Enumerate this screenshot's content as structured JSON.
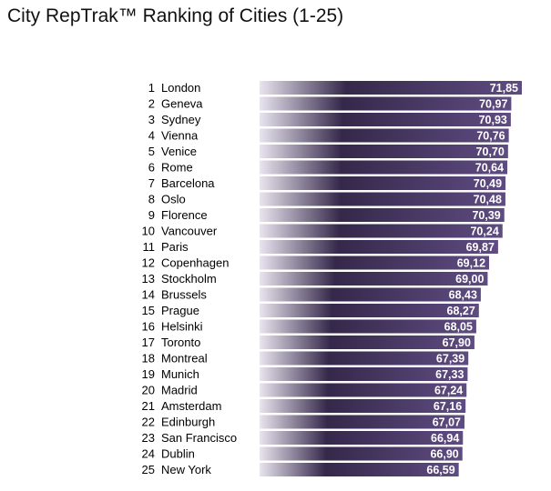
{
  "title": "City RepTrak™ Ranking of Cities (1-25)",
  "colors": {
    "bar_light": "#e9e5ef",
    "bar_dark": "#35284a",
    "bar_end": "#5f4c82"
  },
  "chart_data": {
    "type": "bar",
    "orientation": "horizontal",
    "title": "City RepTrak™ Ranking of Cities (1-25)",
    "ranks": [
      "1",
      "2",
      "3",
      "4",
      "5",
      "6",
      "7",
      "8",
      "9",
      "10",
      "11",
      "12",
      "13",
      "14",
      "15",
      "16",
      "17",
      "18",
      "19",
      "20",
      "21",
      "22",
      "23",
      "24",
      "25"
    ],
    "categories": [
      "London",
      "Geneva",
      "Sydney",
      "Vienna",
      "Venice",
      "Rome",
      "Barcelona",
      "Oslo",
      "Florence",
      "Vancouver",
      "Paris",
      "Copenhagen",
      "Stockholm",
      "Brussels",
      "Prague",
      "Helsinki",
      "Toronto",
      "Montreal",
      "Munich",
      "Madrid",
      "Amsterdam",
      "Edinburgh",
      "San Francisco",
      "Dublin",
      "New York"
    ],
    "values": [
      71.85,
      70.97,
      70.93,
      70.76,
      70.7,
      70.64,
      70.49,
      70.48,
      70.39,
      70.24,
      69.87,
      69.12,
      69.0,
      68.43,
      68.27,
      68.05,
      67.9,
      67.39,
      67.33,
      67.24,
      67.16,
      67.07,
      66.94,
      66.9,
      66.59
    ],
    "value_labels": [
      "71,85",
      "70,97",
      "70,93",
      "70,76",
      "70,70",
      "70,64",
      "70,49",
      "70,48",
      "70,39",
      "70,24",
      "69,87",
      "69,12",
      "69,00",
      "68,43",
      "68,27",
      "68,05",
      "67,90",
      "67,39",
      "67,33",
      "67,24",
      "67,16",
      "67,07",
      "66,94",
      "66,90",
      "66,59"
    ],
    "data_labels": true,
    "axis_visible": false,
    "grid": false
  }
}
